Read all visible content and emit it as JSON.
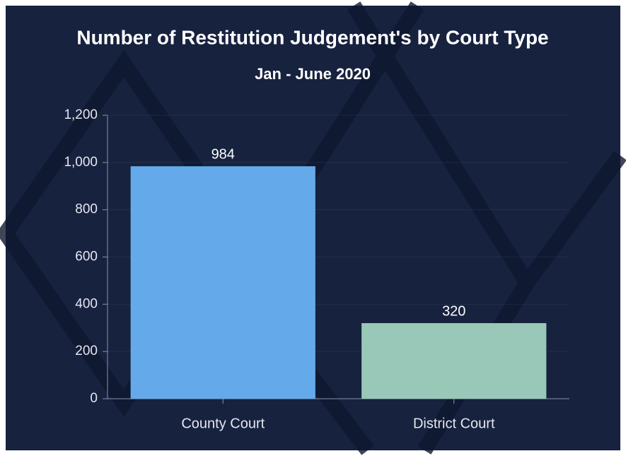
{
  "chart_data": {
    "type": "bar",
    "title": "Number of Restitution Judgement's by Court Type",
    "subtitle": "Jan - June 2020",
    "categories": [
      "County Court",
      "District Court"
    ],
    "values": [
      984,
      320
    ],
    "colors": [
      "#64aaea",
      "#9ac8b8"
    ],
    "ylim": [
      0,
      1200
    ],
    "yticks": [
      0,
      200,
      400,
      600,
      800,
      {
        "value": 1000,
        "label": "1,000"
      },
      {
        "value": 1200,
        "label": "1,200"
      }
    ],
    "grid": true
  }
}
